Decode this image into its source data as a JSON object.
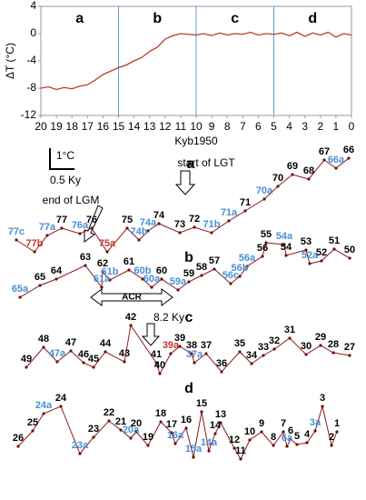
{
  "chart_data": {
    "type": "line",
    "ylabel": "ΔT (°C)",
    "xlabel": "Kyb1950",
    "x": [
      20,
      19.5,
      19,
      18.5,
      18,
      17.5,
      17,
      16.5,
      16,
      15.5,
      15,
      14.5,
      14,
      13.5,
      13,
      12.5,
      12,
      11.5,
      11,
      10.5,
      10,
      9.5,
      9,
      8.5,
      8,
      7.5,
      7,
      6.5,
      6,
      5.5,
      5,
      4.5,
      4,
      3.5,
      3,
      2.5,
      2,
      1.5,
      1,
      0.5,
      0
    ],
    "series": [
      {
        "color": "#c0392b",
        "values": [
          -8,
          -7.8,
          -8.2,
          -7.9,
          -8.1,
          -7.7,
          -7.5,
          -6.8,
          -6,
          -5.5,
          -5,
          -4.6,
          -4,
          -3.5,
          -2.6,
          -2,
          -0.8,
          -0.3,
          0,
          -0.1,
          -0.2,
          0,
          -0.3,
          0.1,
          -0.2,
          0,
          -0.1,
          0.2,
          -0.2,
          0,
          -0.1,
          0.1,
          -0.3,
          0.2,
          -0.4,
          0.1,
          -0.2,
          0.2,
          -0.5,
          0,
          -0.2
        ]
      }
    ],
    "xlim": [
      20,
      0
    ],
    "ylim": [
      -12,
      4
    ],
    "xticks": [
      20,
      19,
      18,
      17,
      16,
      15,
      14,
      13,
      12,
      11,
      10,
      9,
      8,
      7,
      6,
      5,
      4,
      3,
      2,
      1,
      0
    ],
    "yticks": [
      4,
      0,
      -4,
      -8,
      -12
    ],
    "sections": [
      "a",
      "b",
      "c",
      "d"
    ],
    "dividers": [
      15,
      10,
      5
    ],
    "divider_color": "#5b9bd5"
  },
  "scale_bar": {
    "y": "1°C",
    "x": "0.5 Ky"
  },
  "notes": {
    "lgm": "end of LGM",
    "lgt": "start of LGT",
    "acr": "ACR",
    "event": "8.2 Ky"
  },
  "panels": [
    {
      "letter": "a",
      "labels": [
        {
          "text": "77c",
          "color": "blue"
        },
        {
          "text": "77b",
          "color": "red"
        },
        {
          "text": "77a",
          "color": "blue"
        },
        {
          "text": "77",
          "color": "black"
        },
        {
          "text": "76a",
          "color": "blue"
        },
        {
          "text": "76",
          "color": "black"
        },
        {
          "text": "75a",
          "color": "red"
        },
        {
          "text": "75",
          "color": "black"
        },
        {
          "text": "74b",
          "color": "blue"
        },
        {
          "text": "74a",
          "color": "blue"
        },
        {
          "text": "74",
          "color": "black"
        },
        {
          "text": "73",
          "color": "black"
        },
        {
          "text": "72",
          "color": "black"
        },
        {
          "text": "71b",
          "color": "blue"
        },
        {
          "text": "71a",
          "color": "blue"
        },
        {
          "text": "71",
          "color": "black"
        },
        {
          "text": "70a",
          "color": "blue"
        },
        {
          "text": "70",
          "color": "black"
        },
        {
          "text": "69",
          "color": "black"
        },
        {
          "text": "68",
          "color": "black"
        },
        {
          "text": "67",
          "color": "black"
        },
        {
          "text": "66a",
          "color": "blue"
        },
        {
          "text": "66",
          "color": "black"
        }
      ]
    },
    {
      "letter": "b",
      "labels": [
        {
          "text": "65a",
          "color": "blue"
        },
        {
          "text": "65",
          "color": "black"
        },
        {
          "text": "64",
          "color": "black"
        },
        {
          "text": "63",
          "color": "black"
        },
        {
          "text": "61a",
          "color": "blue"
        },
        {
          "text": "62",
          "color": "black"
        },
        {
          "text": "61b",
          "color": "blue"
        },
        {
          "text": "61",
          "color": "black"
        },
        {
          "text": "60b",
          "color": "blue"
        },
        {
          "text": "60a",
          "color": "blue"
        },
        {
          "text": "60",
          "color": "black"
        },
        {
          "text": "59a",
          "color": "blue"
        },
        {
          "text": "59",
          "color": "black"
        },
        {
          "text": "58",
          "color": "black"
        },
        {
          "text": "57",
          "color": "black"
        },
        {
          "text": "56c",
          "color": "blue"
        },
        {
          "text": "56b",
          "color": "blue"
        },
        {
          "text": "56a",
          "color": "blue"
        },
        {
          "text": "56",
          "color": "black"
        },
        {
          "text": "55",
          "color": "black"
        },
        {
          "text": "54a",
          "color": "blue"
        },
        {
          "text": "54",
          "color": "black"
        },
        {
          "text": "53",
          "color": "black"
        },
        {
          "text": "52a",
          "color": "blue"
        },
        {
          "text": "52",
          "color": "black"
        },
        {
          "text": "51",
          "color": "black"
        },
        {
          "text": "50",
          "color": "black"
        }
      ]
    },
    {
      "letter": "c",
      "labels": [
        {
          "text": "49",
          "color": "black"
        },
        {
          "text": "48",
          "color": "black"
        },
        {
          "text": "47a",
          "color": "blue"
        },
        {
          "text": "47",
          "color": "black"
        },
        {
          "text": "46",
          "color": "black"
        },
        {
          "text": "45",
          "color": "black"
        },
        {
          "text": "44",
          "color": "black"
        },
        {
          "text": "43",
          "color": "black"
        },
        {
          "text": "42",
          "color": "black"
        },
        {
          "text": "41",
          "color": "black"
        },
        {
          "text": "40",
          "color": "black"
        },
        {
          "text": "39a",
          "color": "red"
        },
        {
          "text": "39",
          "color": "black"
        },
        {
          "text": "38",
          "color": "black"
        },
        {
          "text": "37a",
          "color": "blue"
        },
        {
          "text": "37",
          "color": "black"
        },
        {
          "text": "36",
          "color": "black"
        },
        {
          "text": "35",
          "color": "black"
        },
        {
          "text": "34",
          "color": "black"
        },
        {
          "text": "33",
          "color": "black"
        },
        {
          "text": "32",
          "color": "black"
        },
        {
          "text": "31",
          "color": "black"
        },
        {
          "text": "30",
          "color": "black"
        },
        {
          "text": "29",
          "color": "black"
        },
        {
          "text": "28",
          "color": "black"
        },
        {
          "text": "27",
          "color": "black"
        }
      ]
    },
    {
      "letter": "d",
      "labels": [
        {
          "text": "26",
          "color": "black"
        },
        {
          "text": "25",
          "color": "black"
        },
        {
          "text": "24a",
          "color": "blue"
        },
        {
          "text": "24",
          "color": "black"
        },
        {
          "text": "23a",
          "color": "blue"
        },
        {
          "text": "23",
          "color": "black"
        },
        {
          "text": "22",
          "color": "black"
        },
        {
          "text": "21",
          "color": "black"
        },
        {
          "text": "20a",
          "color": "blue"
        },
        {
          "text": "20",
          "color": "black"
        },
        {
          "text": "19",
          "color": "black"
        },
        {
          "text": "18",
          "color": "black"
        },
        {
          "text": "17",
          "color": "black"
        },
        {
          "text": "16a",
          "color": "blue"
        },
        {
          "text": "16",
          "color": "black"
        },
        {
          "text": "15a",
          "color": "blue"
        },
        {
          "text": "15",
          "color": "black"
        },
        {
          "text": "14a",
          "color": "blue"
        },
        {
          "text": "14",
          "color": "black"
        },
        {
          "text": "13",
          "color": "black"
        },
        {
          "text": "12",
          "color": "black"
        },
        {
          "text": "11",
          "color": "black"
        },
        {
          "text": "10",
          "color": "black"
        },
        {
          "text": "9",
          "color": "black"
        },
        {
          "text": "8",
          "color": "black"
        },
        {
          "text": "7",
          "color": "black"
        },
        {
          "text": "6a",
          "color": "blue"
        },
        {
          "text": "6",
          "color": "black"
        },
        {
          "text": "5",
          "color": "black"
        },
        {
          "text": "4",
          "color": "black"
        },
        {
          "text": "3a",
          "color": "blue"
        },
        {
          "text": "3",
          "color": "black"
        },
        {
          "text": "2",
          "color": "black"
        },
        {
          "text": "1",
          "color": "black"
        }
      ]
    }
  ]
}
